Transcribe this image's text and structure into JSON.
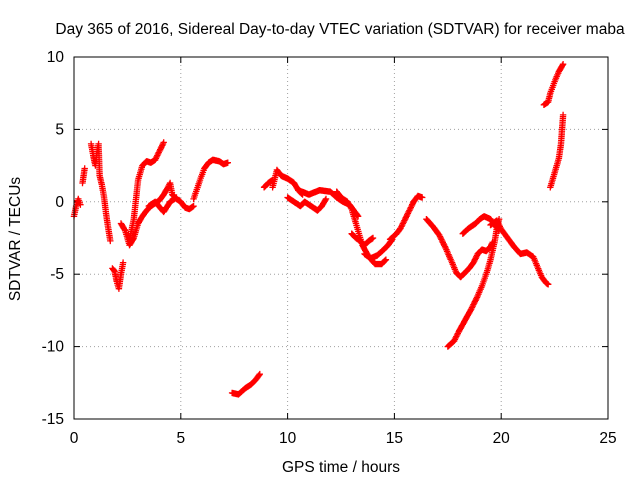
{
  "chart_data": {
    "type": "scatter",
    "title": "Day 365 of 2016, Sidereal Day-to-day VTEC variation (SDTVAR) for receiver maba",
    "xlabel": "GPS time / hours",
    "ylabel": "SDTVAR / TECUs",
    "xlim": [
      0,
      25
    ],
    "ylim": [
      -15,
      10
    ],
    "xticks": [
      "0",
      "5",
      "10",
      "15",
      "20",
      "25"
    ],
    "yticks": [
      "10",
      "5",
      "0",
      "-5",
      "-10",
      "-15"
    ],
    "grid": true,
    "marker": "plus",
    "series_color": "#ff0000",
    "segments": [
      [
        [
          0.0,
          -1.0
        ],
        [
          0.1,
          -0.3
        ],
        [
          0.2,
          0.2
        ],
        [
          0.3,
          -0.2
        ]
      ],
      [
        [
          0.4,
          1.3
        ],
        [
          0.5,
          2.3
        ]
      ],
      [
        [
          0.8,
          4.0
        ],
        [
          0.9,
          3.2
        ],
        [
          1.0,
          2.5
        ],
        [
          1.1,
          3.6
        ],
        [
          1.15,
          4.0
        ],
        [
          1.2,
          1.8
        ],
        [
          1.3,
          1.2
        ],
        [
          1.4,
          0.4
        ],
        [
          1.5,
          -0.8
        ],
        [
          1.6,
          -1.8
        ],
        [
          1.7,
          -2.7
        ]
      ],
      [
        [
          1.8,
          -4.6
        ],
        [
          1.9,
          -4.8
        ],
        [
          2.0,
          -5.5
        ],
        [
          2.1,
          -6.0
        ],
        [
          2.2,
          -5.0
        ],
        [
          2.3,
          -4.2
        ]
      ],
      [
        [
          2.2,
          -1.5
        ],
        [
          2.4,
          -2.0
        ],
        [
          2.6,
          -3.0
        ],
        [
          2.8,
          -2.5
        ],
        [
          3.0,
          -1.5
        ],
        [
          3.2,
          -1.0
        ],
        [
          3.4,
          -0.6
        ],
        [
          3.6,
          -0.3
        ],
        [
          3.8,
          -0.1
        ],
        [
          4.0,
          0.1
        ],
        [
          4.2,
          0.5
        ],
        [
          4.4,
          1.0
        ],
        [
          4.5,
          1.3
        ],
        [
          4.6,
          0.5
        ],
        [
          4.8,
          0.2
        ],
        [
          5.0,
          0.0
        ],
        [
          5.2,
          -0.4
        ],
        [
          5.4,
          -0.5
        ],
        [
          5.6,
          -0.3
        ]
      ],
      [
        [
          2.6,
          -2.6
        ],
        [
          2.8,
          -1.2
        ],
        [
          3.0,
          1.5
        ],
        [
          3.2,
          2.5
        ],
        [
          3.4,
          2.8
        ],
        [
          3.6,
          2.7
        ],
        [
          3.8,
          2.9
        ],
        [
          4.0,
          3.5
        ],
        [
          4.2,
          4.1
        ]
      ],
      [
        [
          3.5,
          -0.3
        ],
        [
          3.8,
          0.0
        ],
        [
          4.2,
          -0.7
        ],
        [
          4.5,
          0.0
        ],
        [
          4.8,
          0.3
        ]
      ],
      [
        [
          5.6,
          0.2
        ],
        [
          5.9,
          1.5
        ],
        [
          6.1,
          2.3
        ],
        [
          6.3,
          2.7
        ],
        [
          6.5,
          2.9
        ],
        [
          6.8,
          2.8
        ],
        [
          7.0,
          2.6
        ],
        [
          7.2,
          2.7
        ]
      ],
      [
        [
          7.4,
          -13.2
        ],
        [
          7.7,
          -13.3
        ],
        [
          8.0,
          -12.9
        ],
        [
          8.3,
          -12.6
        ],
        [
          8.5,
          -12.3
        ],
        [
          8.7,
          -11.9
        ]
      ],
      [
        [
          8.9,
          1.0
        ],
        [
          9.1,
          1.3
        ],
        [
          9.3,
          1.5
        ]
      ],
      [
        [
          9.3,
          1.0
        ],
        [
          9.5,
          2.2
        ],
        [
          9.7,
          1.8
        ],
        [
          10.0,
          1.6
        ],
        [
          10.3,
          1.3
        ],
        [
          10.5,
          0.8
        ],
        [
          10.7,
          0.5
        ]
      ],
      [
        [
          10.0,
          0.3
        ],
        [
          10.3,
          0.0
        ],
        [
          10.6,
          -0.3
        ],
        [
          10.8,
          0.0
        ],
        [
          11.1,
          -0.3
        ],
        [
          11.4,
          -0.6
        ],
        [
          11.6,
          -0.3
        ],
        [
          11.8,
          0.2
        ]
      ],
      [
        [
          10.5,
          0.8
        ],
        [
          11.0,
          0.5
        ],
        [
          11.5,
          0.8
        ],
        [
          12.0,
          0.7
        ],
        [
          12.3,
          0.3
        ],
        [
          12.6,
          0.0
        ],
        [
          12.9,
          -0.2
        ],
        [
          13.1,
          -0.6
        ],
        [
          13.3,
          -1.0
        ]
      ],
      [
        [
          13.0,
          -2.2
        ],
        [
          13.2,
          -2.5
        ],
        [
          13.4,
          -2.7
        ],
        [
          13.6,
          -3.0
        ],
        [
          13.8,
          -2.7
        ],
        [
          14.0,
          -2.5
        ]
      ],
      [
        [
          12.3,
          0.7
        ],
        [
          12.5,
          0.3
        ],
        [
          12.8,
          0.0
        ],
        [
          13.0,
          -0.5
        ],
        [
          13.2,
          -1.5
        ],
        [
          13.5,
          -3.0
        ],
        [
          13.8,
          -3.8
        ],
        [
          14.1,
          -4.3
        ],
        [
          14.4,
          -4.3
        ],
        [
          14.6,
          -4.0
        ]
      ],
      [
        [
          13.6,
          -3.6
        ],
        [
          13.9,
          -3.9
        ],
        [
          14.2,
          -3.7
        ],
        [
          14.5,
          -3.3
        ],
        [
          14.7,
          -3.0
        ],
        [
          14.9,
          -2.6
        ]
      ],
      [
        [
          14.8,
          -2.6
        ],
        [
          15.1,
          -2.2
        ],
        [
          15.3,
          -1.8
        ],
        [
          15.5,
          -1.2
        ],
        [
          15.7,
          -0.6
        ],
        [
          15.9,
          0.0
        ],
        [
          16.1,
          0.4
        ],
        [
          16.3,
          0.3
        ]
      ],
      [
        [
          16.5,
          -1.2
        ],
        [
          16.8,
          -1.7
        ],
        [
          17.1,
          -2.3
        ],
        [
          17.4,
          -3.2
        ],
        [
          17.7,
          -4.2
        ],
        [
          17.9,
          -4.9
        ],
        [
          18.1,
          -5.2
        ],
        [
          18.3,
          -4.9
        ],
        [
          18.5,
          -4.6
        ],
        [
          18.7,
          -4.2
        ],
        [
          18.9,
          -3.6
        ],
        [
          19.1,
          -3.3
        ],
        [
          19.3,
          -3.4
        ],
        [
          19.5,
          -3.1
        ],
        [
          19.6,
          -2.8
        ]
      ],
      [
        [
          17.5,
          -10.0
        ],
        [
          17.8,
          -9.6
        ],
        [
          18.0,
          -9.0
        ],
        [
          18.3,
          -8.2
        ],
        [
          18.6,
          -7.4
        ],
        [
          18.9,
          -6.5
        ],
        [
          19.1,
          -5.8
        ],
        [
          19.3,
          -5.0
        ],
        [
          19.5,
          -4.0
        ],
        [
          19.7,
          -2.7
        ],
        [
          19.8,
          -1.8
        ],
        [
          19.9,
          -1.2
        ]
      ],
      [
        [
          18.2,
          -2.2
        ],
        [
          18.5,
          -1.8
        ],
        [
          18.8,
          -1.5
        ],
        [
          19.0,
          -1.2
        ],
        [
          19.2,
          -1.0
        ],
        [
          19.5,
          -1.2
        ],
        [
          19.7,
          -1.6
        ],
        [
          19.9,
          -2.0
        ]
      ],
      [
        [
          19.5,
          -1.6
        ],
        [
          19.8,
          -1.3
        ],
        [
          20.0,
          -1.9
        ],
        [
          20.3,
          -2.5
        ],
        [
          20.6,
          -3.1
        ],
        [
          20.9,
          -3.6
        ],
        [
          21.2,
          -3.5
        ],
        [
          21.5,
          -3.8
        ],
        [
          21.7,
          -4.5
        ],
        [
          21.9,
          -5.2
        ],
        [
          22.1,
          -5.6
        ],
        [
          22.2,
          -5.7
        ]
      ],
      [
        [
          22.0,
          6.7
        ],
        [
          22.2,
          6.9
        ],
        [
          22.3,
          7.5
        ],
        [
          22.5,
          8.3
        ],
        [
          22.7,
          9.0
        ],
        [
          22.9,
          9.5
        ]
      ],
      [
        [
          22.3,
          1.0
        ],
        [
          22.5,
          2.0
        ],
        [
          22.7,
          3.0
        ],
        [
          22.8,
          4.0
        ],
        [
          22.85,
          5.0
        ],
        [
          22.9,
          6.0
        ]
      ]
    ]
  }
}
